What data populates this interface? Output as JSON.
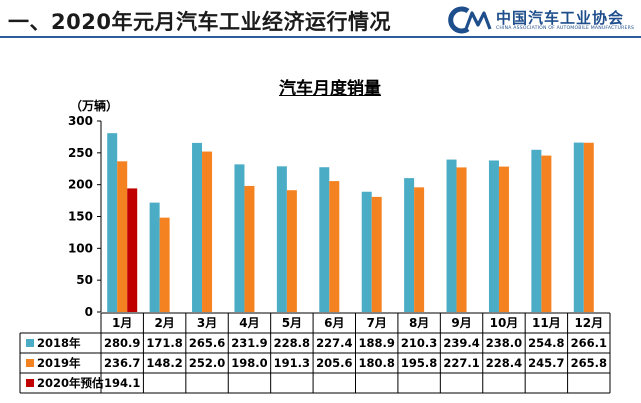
{
  "header": {
    "title": "一、2020年元月汽车工业经济运行情况"
  },
  "logo": {
    "name_cn": "中国汽车工业协会",
    "name_en": "CHINA ASSOCIATION OF AUTOMOBILE MANUFACTURERS"
  },
  "colors": {
    "series_2018": "#4bacc6",
    "series_2019": "#f58220",
    "series_2020": "#c00000",
    "divider": "#2a5c9e"
  },
  "chart_data": {
    "type": "bar",
    "title": "汽车月度销量",
    "ylabel": "（万辆）",
    "xlabel": "",
    "ylim": [
      0,
      300
    ],
    "yticks": [
      0,
      50,
      100,
      150,
      200,
      250,
      300
    ],
    "grid": false,
    "legend": "table-left",
    "categories": [
      "1月",
      "2月",
      "3月",
      "4月",
      "5月",
      "6月",
      "7月",
      "8月",
      "9月",
      "10月",
      "11月",
      "12月"
    ],
    "series": [
      {
        "name": "2018年",
        "values": [
          280.9,
          171.8,
          265.6,
          231.9,
          228.8,
          227.4,
          188.9,
          210.3,
          239.4,
          238.0,
          254.8,
          266.1
        ],
        "labels": [
          "280.9",
          "171.8",
          "265.6",
          "231.9",
          "228.8",
          "227.4",
          "188.9",
          "210.3",
          "239.4",
          "238.0",
          "254.8",
          "266.1"
        ]
      },
      {
        "name": "2019年",
        "values": [
          236.7,
          148.2,
          252.0,
          198.0,
          191.3,
          205.6,
          180.8,
          195.8,
          227.1,
          228.4,
          245.7,
          265.8
        ],
        "labels": [
          "236.7",
          "148.2",
          "252.0",
          "198.0",
          "191.3",
          "205.6",
          "180.8",
          "195.8",
          "227.1",
          "228.4",
          "245.7",
          "265.8"
        ]
      },
      {
        "name": "2020年预估",
        "values": [
          194.1,
          null,
          null,
          null,
          null,
          null,
          null,
          null,
          null,
          null,
          null,
          null
        ],
        "labels": [
          "194.1",
          "",
          "",
          "",
          "",
          "",
          "",
          "",
          "",
          "",
          "",
          ""
        ]
      }
    ]
  }
}
